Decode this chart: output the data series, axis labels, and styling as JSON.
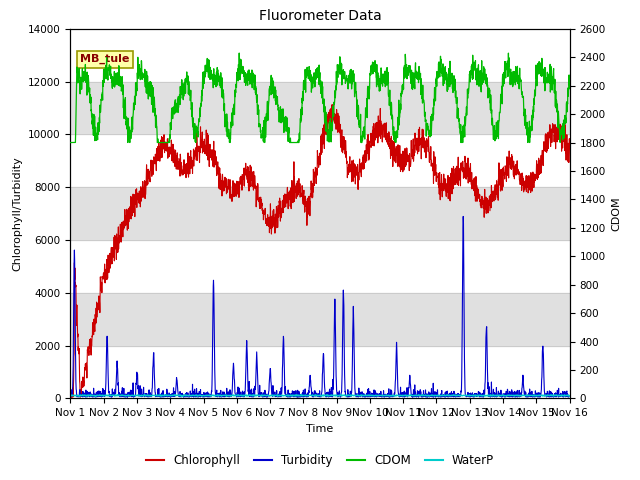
{
  "title": "Fluorometer Data",
  "xlabel": "Time",
  "ylabel_left": "Chlorophyll/Turbidity",
  "ylabel_right": "CDOM",
  "annotation": "MB_tule",
  "ylim_left": [
    0,
    14000
  ],
  "ylim_right": [
    0,
    2600
  ],
  "xlim": [
    0,
    15
  ],
  "xtick_labels": [
    "Nov 1",
    "Nov 2",
    "Nov 3",
    "Nov 4",
    "Nov 5",
    "Nov 6",
    "Nov 7",
    "Nov 8",
    "Nov 9",
    "Nov 10",
    "Nov 11",
    "Nov 12",
    "Nov 13",
    "Nov 14",
    "Nov 15",
    "Nov 16"
  ],
  "xtick_positions": [
    0,
    1,
    2,
    3,
    4,
    5,
    6,
    7,
    8,
    9,
    10,
    11,
    12,
    13,
    14,
    15
  ],
  "yticks_left": [
    0,
    2000,
    4000,
    6000,
    8000,
    10000,
    12000,
    14000
  ],
  "yticks_right": [
    0,
    200,
    400,
    600,
    800,
    1000,
    1200,
    1400,
    1600,
    1800,
    2000,
    2200,
    2400,
    2600
  ],
  "colors": {
    "chlorophyll": "#cc0000",
    "turbidity": "#0000cc",
    "cdom": "#00bb00",
    "waterp": "#00cccc",
    "background": "#ffffff",
    "grid_band": "#e0e0e0",
    "annotation_bg": "#ffffaa",
    "annotation_border": "#999900",
    "annotation_text": "#880000"
  },
  "legend_entries": [
    "Chlorophyll",
    "Turbidity",
    "CDOM",
    "WaterP"
  ],
  "num_points": 2000,
  "seed": 42
}
